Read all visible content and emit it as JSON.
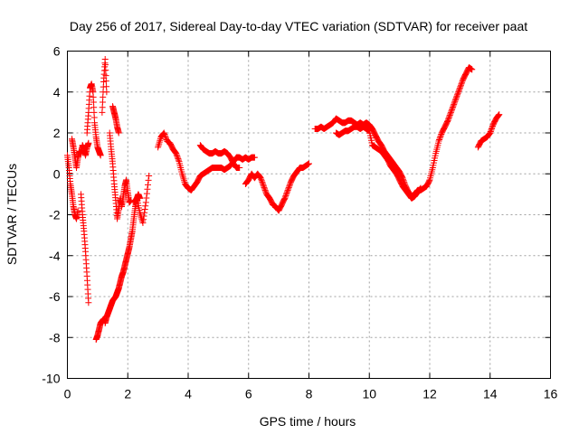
{
  "chart_data": {
    "type": "scatter",
    "title": "Day 256 of 2017, Sidereal Day-to-day VTEC variation (SDTVAR) for receiver paat",
    "xlabel": "GPS time / hours",
    "ylabel": "SDTVAR / TECUs",
    "xlim": [
      0,
      16
    ],
    "ylim": [
      -10,
      6
    ],
    "xticks": [
      0,
      2,
      4,
      6,
      8,
      10,
      12,
      14,
      16
    ],
    "yticks": [
      -10,
      -8,
      -6,
      -4,
      -2,
      0,
      2,
      4,
      6
    ],
    "xtick_labels": [
      "0",
      "2",
      "4",
      "6",
      "8",
      "10",
      "12",
      "14",
      "16"
    ],
    "ytick_labels": [
      "-10",
      "-8",
      "-6",
      "-4",
      "-2",
      "0",
      "2",
      "4",
      "6"
    ],
    "grid": true,
    "marker": "+",
    "color": "#ff0000",
    "series": [
      {
        "name": "SDTVAR",
        "segments": [
          {
            "x": [
              0.0,
              0.05,
              0.1,
              0.15,
              0.2,
              0.25,
              0.3,
              0.35
            ],
            "y": [
              0.9,
              0.3,
              -0.5,
              -1.0,
              -1.6,
              -2.0,
              -2.2,
              -1.8
            ]
          },
          {
            "x": [
              0.15,
              0.2,
              0.25,
              0.3,
              0.35,
              0.4,
              0.45,
              0.5,
              0.55,
              0.6,
              0.65,
              0.7
            ],
            "y": [
              1.7,
              1.3,
              0.8,
              0.3,
              0.8,
              1.1,
              1.0,
              1.4,
              1.2,
              0.9,
              1.3,
              1.5
            ]
          },
          {
            "x": [
              0.45,
              0.5,
              0.55,
              0.6,
              0.65,
              0.7
            ],
            "y": [
              -1.0,
              -2.0,
              -2.8,
              -3.8,
              -5.0,
              -6.3
            ]
          },
          {
            "x": [
              0.65,
              0.7,
              0.75,
              0.8,
              0.85,
              0.9,
              0.95,
              1.0,
              1.05,
              1.1
            ],
            "y": [
              2.0,
              3.0,
              4.2,
              4.4,
              4.0,
              2.5,
              1.8,
              1.3,
              1.1,
              0.9
            ]
          },
          {
            "x": [
              0.95,
              1.0,
              1.05,
              1.1,
              1.15,
              1.2,
              1.25
            ],
            "y": [
              -8.1,
              -7.9,
              -7.6,
              -7.3,
              -7.2,
              -7.1,
              -7.2
            ]
          },
          {
            "x": [
              1.15,
              1.2,
              1.25,
              1.3
            ],
            "y": [
              3.0,
              4.5,
              5.6,
              4.0
            ]
          },
          {
            "x": [
              1.25,
              1.3,
              1.35,
              1.4,
              1.45,
              1.5,
              1.55,
              1.6,
              1.65,
              1.7,
              1.75,
              1.8,
              1.85,
              1.9,
              1.95,
              2.0,
              2.05,
              2.1,
              2.15,
              2.2,
              2.25,
              2.3,
              2.35,
              2.4
            ],
            "y": [
              -7.3,
              -7.0,
              -6.8,
              -6.6,
              -6.4,
              -6.2,
              -6.1,
              -6.0,
              -5.8,
              -5.6,
              -5.3,
              -5.0,
              -4.8,
              -4.5,
              -4.2,
              -3.9,
              -3.6,
              -3.2,
              -2.8,
              -2.2,
              -1.6,
              -1.2,
              -1.0,
              -1.2
            ]
          },
          {
            "x": [
              1.4,
              1.45,
              1.5,
              1.55,
              1.6,
              1.65,
              1.7,
              1.75,
              1.8,
              1.85,
              1.9,
              1.95,
              2.0,
              2.05,
              2.1
            ],
            "y": [
              2.0,
              1.2,
              0.5,
              -0.5,
              -1.3,
              -2.2,
              -1.7,
              -1.2,
              -1.6,
              -1.1,
              -0.6,
              -0.3,
              -0.9,
              -1.4,
              -1.3
            ]
          },
          {
            "x": [
              1.5,
              1.55,
              1.6,
              1.65,
              1.7
            ],
            "y": [
              3.3,
              3.0,
              2.7,
              2.3,
              2.0
            ]
          },
          {
            "x": [
              2.2,
              2.3,
              2.4,
              2.5,
              2.6,
              2.7
            ],
            "y": [
              -1.4,
              -1.2,
              -1.9,
              -2.4,
              -1.4,
              -0.1
            ]
          },
          {
            "x": [
              3.0,
              3.1,
              3.2,
              3.3,
              3.4,
              3.5,
              3.6,
              3.7,
              3.8,
              3.9,
              4.0,
              4.1,
              4.2,
              4.3,
              4.4,
              4.5,
              4.6,
              4.7,
              4.8,
              4.9,
              5.0,
              5.1,
              5.2,
              5.3,
              5.4,
              5.5,
              5.6,
              5.7,
              5.8,
              5.9,
              6.0,
              6.1,
              6.2
            ],
            "y": [
              1.3,
              1.8,
              2.0,
              1.6,
              1.5,
              1.2,
              1.0,
              0.6,
              0.0,
              -0.5,
              -0.7,
              -0.8,
              -0.6,
              -0.4,
              -0.1,
              0.0,
              0.1,
              0.2,
              0.3,
              0.3,
              0.3,
              0.3,
              0.2,
              0.3,
              0.4,
              0.6,
              0.8,
              0.8,
              0.7,
              0.8,
              0.7,
              0.8,
              0.8
            ]
          },
          {
            "x": [
              4.4,
              4.5,
              4.6,
              4.7,
              4.8,
              4.9,
              5.0,
              5.1,
              5.2,
              5.3,
              5.4,
              5.5,
              5.6,
              5.7
            ],
            "y": [
              1.4,
              1.2,
              1.1,
              1.0,
              1.0,
              1.1,
              1.0,
              1.0,
              1.1,
              1.0,
              0.8,
              0.5,
              0.3,
              0.3
            ]
          },
          {
            "x": [
              5.9,
              6.0,
              6.1,
              6.2,
              6.3,
              6.4,
              6.5,
              6.6,
              6.7,
              6.8,
              6.9,
              7.0,
              7.1,
              7.2,
              7.3,
              7.4,
              7.5,
              7.6,
              7.7,
              7.8,
              7.9,
              8.0
            ],
            "y": [
              -0.5,
              -0.3,
              0.0,
              -0.2,
              0.0,
              -0.2,
              -0.6,
              -1.0,
              -1.2,
              -1.5,
              -1.6,
              -1.8,
              -1.5,
              -1.2,
              -0.8,
              -0.4,
              -0.1,
              0.1,
              0.3,
              0.3,
              0.4,
              0.5
            ]
          },
          {
            "x": [
              8.2,
              8.3,
              8.4,
              8.5,
              8.6,
              8.7,
              8.8,
              8.9,
              9.0,
              9.1,
              9.2,
              9.3,
              9.4,
              9.5,
              9.6,
              9.7,
              9.8,
              9.9,
              10.0,
              10.1,
              10.2,
              10.3,
              10.4,
              10.5,
              10.6,
              10.7,
              10.8,
              10.9,
              11.0,
              11.1,
              11.2,
              11.3,
              11.4,
              11.5,
              11.6,
              11.7,
              11.8,
              11.9,
              12.0,
              12.1,
              12.2,
              12.3,
              12.4,
              12.5,
              12.6,
              12.7,
              12.8,
              12.9,
              13.0,
              13.1,
              13.2,
              13.3,
              13.4
            ],
            "y": [
              2.2,
              2.2,
              2.3,
              2.2,
              2.3,
              2.4,
              2.5,
              2.7,
              2.6,
              2.5,
              2.5,
              2.6,
              2.6,
              2.5,
              2.4,
              2.5,
              2.4,
              2.5,
              2.4,
              2.2,
              1.9,
              1.6,
              1.4,
              1.1,
              0.9,
              0.7,
              0.5,
              0.3,
              0.1,
              -0.2,
              -0.6,
              -0.9,
              -1.1,
              -1.0,
              -0.8,
              -0.8,
              -0.7,
              -0.6,
              -0.3,
              0.3,
              1.0,
              1.6,
              2.0,
              2.3,
              2.6,
              3.0,
              3.4,
              3.8,
              4.2,
              4.6,
              4.9,
              5.2,
              5.1
            ]
          },
          {
            "x": [
              8.9,
              9.0,
              9.1,
              9.2,
              9.3,
              9.4,
              9.5,
              9.6,
              9.7,
              9.8,
              9.9,
              10.0,
              10.1,
              10.2,
              10.3,
              10.4,
              10.5,
              10.6,
              10.7,
              10.8,
              10.9,
              11.0,
              11.1,
              11.2,
              11.3,
              11.4,
              11.5,
              11.6,
              11.7
            ],
            "y": [
              2.0,
              1.9,
              2.0,
              2.1,
              2.1,
              2.2,
              2.3,
              2.3,
              2.2,
              2.3,
              2.2,
              2.1,
              1.4,
              1.3,
              1.2,
              1.1,
              0.9,
              0.7,
              0.4,
              0.2,
              0.0,
              -0.3,
              -0.6,
              -0.8,
              -1.0,
              -1.2,
              -1.1,
              -0.9,
              -0.7
            ]
          },
          {
            "x": [
              13.6,
              13.7,
              13.8,
              13.9,
              14.0,
              14.1,
              14.2,
              14.3
            ],
            "y": [
              1.3,
              1.6,
              1.7,
              1.8,
              2.0,
              2.4,
              2.7,
              2.9
            ]
          }
        ]
      }
    ]
  }
}
